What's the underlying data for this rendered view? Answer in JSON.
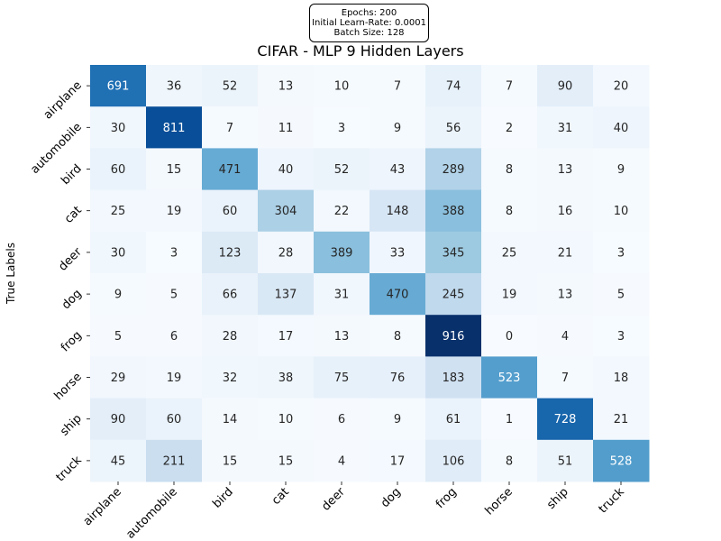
{
  "info": {
    "epochs": "Epochs: 200",
    "learn_rate": "Initial Learn-Rate: 0.0001",
    "batch_size": "Batch Size: 128"
  },
  "chart_data": {
    "type": "heatmap",
    "title": "CIFAR - MLP 9 Hidden Layers",
    "xlabel": "",
    "ylabel": "True Labels",
    "x_categories": [
      "airplane",
      "automobile",
      "bird",
      "cat",
      "deer",
      "dog",
      "frog",
      "horse",
      "ship",
      "truck"
    ],
    "y_categories": [
      "airplane",
      "automobile",
      "bird",
      "cat",
      "deer",
      "dog",
      "frog",
      "horse",
      "ship",
      "truck"
    ],
    "values": [
      [
        691,
        36,
        52,
        13,
        10,
        7,
        74,
        7,
        90,
        20
      ],
      [
        30,
        811,
        7,
        11,
        3,
        9,
        56,
        2,
        31,
        40
      ],
      [
        60,
        15,
        471,
        40,
        52,
        43,
        289,
        8,
        13,
        9
      ],
      [
        25,
        19,
        60,
        304,
        22,
        148,
        388,
        8,
        16,
        10
      ],
      [
        30,
        3,
        123,
        28,
        389,
        33,
        345,
        25,
        21,
        3
      ],
      [
        9,
        5,
        66,
        137,
        31,
        470,
        245,
        19,
        13,
        5
      ],
      [
        5,
        6,
        28,
        17,
        13,
        8,
        916,
        0,
        4,
        3
      ],
      [
        29,
        19,
        32,
        38,
        75,
        76,
        183,
        523,
        7,
        18
      ],
      [
        90,
        60,
        14,
        10,
        6,
        9,
        61,
        1,
        728,
        21
      ],
      [
        45,
        211,
        15,
        15,
        4,
        17,
        106,
        8,
        51,
        528
      ]
    ],
    "value_range": [
      0,
      916
    ],
    "colormap": "Blues",
    "colorbar": false,
    "grid": false
  }
}
